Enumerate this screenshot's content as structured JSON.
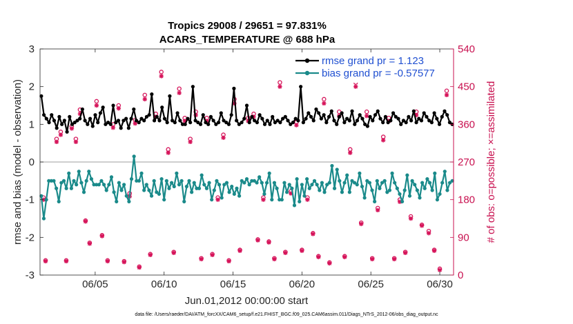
{
  "chart_data": {
    "type": "line",
    "title": "Tropics 29008 / 29651 = 97.831%",
    "subtitle": "ACARS_TEMPERATURE @ 688 hPa",
    "xlabel": "Jun.01,2012 00:00:00 start",
    "ylabel": "rmse and bias (model - observation)",
    "ylabel_right": "# of obs: o=possible; ×=assimilated",
    "footer": "data file: /Users/raeder/DAI/ATM_forcXX/CAM6_setup/f.e21.FHIST_BGC.f09_025.CAM6assim.011/Diags_NTrS_2012-06/obs_diag_output.nc",
    "xlim": [
      1,
      31
    ],
    "ylim": [
      -3,
      3
    ],
    "ylim_right": [
      0,
      540
    ],
    "x_ticks": [
      "06/05",
      "06/10",
      "06/15",
      "06/20",
      "06/25",
      "06/30"
    ],
    "x_tick_values": [
      5,
      10,
      15,
      20,
      25,
      30
    ],
    "y_ticks": [
      "3",
      "2",
      "1",
      "0",
      "-1",
      "-2",
      "-3"
    ],
    "y_tick_values": [
      3,
      2,
      1,
      0,
      -1,
      -2,
      -3
    ],
    "y_ticks_right": [
      "540",
      "450",
      "360",
      "270",
      "180",
      "90",
      "0"
    ],
    "y_tick_values_right": [
      540,
      450,
      360,
      270,
      180,
      90,
      0
    ],
    "series": [
      {
        "name": "rmse grand pr = 1.123",
        "color": "#000000",
        "values": [
          1.75,
          1.25,
          1.15,
          1.05,
          1.25,
          1.1,
          0.9,
          1.2,
          1.0,
          1.1,
          0.8,
          1.2,
          1.0,
          1.05,
          1.1,
          1.15,
          1.4,
          1.1,
          1.0,
          1.15,
          0.95,
          1.25,
          1.05,
          1.3,
          1.45,
          1.0,
          1.05,
          1.0,
          1.5,
          1.05,
          1.1,
          0.9,
          1.1,
          1.15,
          0.9,
          1.15,
          1.4,
          1.1,
          1.05,
          1.15,
          1.1,
          1.2,
          1.25,
          1.8,
          1.1,
          1.2,
          1.1,
          1.45,
          1.15,
          1.05,
          1.75,
          1.1,
          1.05,
          1.3,
          1.1,
          1.0,
          1.0,
          1.15,
          1.05,
          2.0,
          1.1,
          1.05,
          1.0,
          1.25,
          1.05,
          1.0,
          1.2,
          1.1,
          1.0,
          1.05,
          1.3,
          1.1,
          1.05,
          1.0,
          1.25,
          1.95,
          1.1,
          1.0,
          1.05,
          1.15,
          1.5,
          1.05,
          1.2,
          1.1,
          1.05,
          1.25,
          1.15,
          1.0,
          1.1,
          1.0,
          1.2,
          1.05,
          1.1,
          1.05,
          1.15,
          1.2,
          1.1,
          1.0,
          1.05,
          1.15,
          1.1,
          2.0,
          1.05,
          1.15,
          1.3,
          1.2,
          1.1,
          1.4,
          1.3,
          1.15,
          1.25,
          1.05,
          1.2,
          1.35,
          1.1,
          1.0,
          1.2,
          1.3,
          1.05,
          1.15,
          1.1,
          1.35,
          1.0,
          1.1,
          1.25,
          1.15,
          1.0,
          0.95,
          1.2,
          1.1,
          1.25,
          1.35,
          1.15,
          1.05,
          1.2,
          1.05,
          1.1,
          1.3,
          1.2,
          1.15,
          1.0,
          1.1,
          1.05,
          1.2,
          1.1,
          1.35,
          1.05,
          1.15,
          1.1,
          1.3,
          1.2,
          1.1,
          1.05,
          1.3,
          1.15,
          1.0,
          1.2,
          1.35,
          1.25,
          1.05,
          1.0
        ]
      },
      {
        "name": "bias grand pr = -0.57577",
        "color": "#1a8a8a",
        "values": [
          -0.9,
          -1.5,
          -1.0,
          -0.5,
          -0.5,
          -0.5,
          -0.7,
          -1.05,
          -0.55,
          -0.5,
          -0.7,
          -0.3,
          -0.7,
          -0.5,
          -0.6,
          -0.25,
          -0.55,
          -0.8,
          -0.5,
          -0.25,
          -0.45,
          -0.6,
          -0.6,
          -0.6,
          -0.5,
          -0.6,
          -0.75,
          -0.6,
          -0.4,
          -0.8,
          -1.05,
          -0.55,
          -0.75,
          -0.6,
          -0.9,
          -1.05,
          -0.45,
          0.15,
          -0.5,
          -0.5,
          -0.3,
          -0.75,
          -0.6,
          -0.75,
          -0.9,
          -0.5,
          -0.8,
          -0.85,
          -0.45,
          -1.0,
          -0.5,
          -0.7,
          -0.55,
          -0.65,
          -0.3,
          -0.6,
          -0.5,
          -1.05,
          -0.65,
          -0.5,
          -0.8,
          -0.55,
          -0.7,
          -0.7,
          -0.35,
          -0.6,
          -0.7,
          -0.55,
          -1.0,
          -0.75,
          -0.5,
          -0.6,
          -0.95,
          -0.6,
          -0.55,
          -0.8,
          -0.65,
          -0.85,
          -0.7,
          -0.9,
          -0.5,
          -0.55,
          -0.45,
          -0.6,
          -0.5,
          -0.5,
          -0.55,
          -0.4,
          -0.55,
          -0.85,
          -0.55,
          -0.3,
          -1.0,
          -0.55,
          -0.7,
          -1.0,
          -1.0,
          -0.55,
          -0.8,
          -0.6,
          -0.7,
          -1.15,
          -0.45,
          -1.05,
          -0.6,
          -0.9,
          -0.45,
          -0.7,
          -0.6,
          -0.5,
          -0.6,
          -0.75,
          -0.55,
          -0.8,
          -0.6,
          -0.55,
          -0.1,
          -0.7,
          -0.2,
          -0.5,
          -0.8,
          -0.55,
          -0.35,
          -0.8,
          -0.5,
          -0.55,
          -0.6,
          -0.3,
          -0.65,
          -0.95,
          -0.5,
          -0.55,
          -0.75,
          -1.05,
          -0.5,
          -0.7,
          -0.55,
          -0.5,
          -0.8,
          -0.75,
          -0.3,
          -0.55,
          -0.7,
          -0.85,
          -1.05,
          -0.75,
          -0.35,
          -0.9,
          -0.5,
          -0.6,
          -0.75,
          -0.95,
          -0.55,
          -0.7,
          -0.45,
          -0.55,
          -0.75,
          -0.3,
          -1.0,
          -0.85,
          -0.55,
          -0.25,
          -0.75,
          -0.55,
          -0.5
        ]
      }
    ],
    "obs_possible": [
      [
        1.25,
        185
      ],
      [
        1.4,
        35
      ],
      [
        2.2,
        325
      ],
      [
        2.5,
        342
      ],
      [
        2.9,
        35
      ],
      [
        3.3,
        355
      ],
      [
        3.6,
        325
      ],
      [
        3.9,
        395
      ],
      [
        4.3,
        130
      ],
      [
        4.6,
        77
      ],
      [
        5.1,
        415
      ],
      [
        5.5,
        95
      ],
      [
        5.9,
        35
      ],
      [
        6.3,
        360
      ],
      [
        6.7,
        405
      ],
      [
        7.1,
        33
      ],
      [
        7.5,
        195
      ],
      [
        7.9,
        370
      ],
      [
        8.2,
        20
      ],
      [
        8.6,
        430
      ],
      [
        9.0,
        50
      ],
      [
        9.4,
        385
      ],
      [
        9.8,
        485
      ],
      [
        10.3,
        300
      ],
      [
        10.7,
        55
      ],
      [
        11.1,
        445
      ],
      [
        11.5,
        375
      ],
      [
        11.9,
        325
      ],
      [
        12.3,
        390
      ],
      [
        12.7,
        40
      ],
      [
        13.1,
        375
      ],
      [
        13.5,
        50
      ],
      [
        13.9,
        185
      ],
      [
        14.3,
        335
      ],
      [
        14.7,
        35
      ],
      [
        15.1,
        420
      ],
      [
        15.5,
        60
      ],
      [
        16.1,
        375
      ],
      [
        16.5,
        385
      ],
      [
        16.8,
        85
      ],
      [
        17.2,
        185
      ],
      [
        17.6,
        80
      ],
      [
        18.0,
        40
      ],
      [
        18.4,
        460
      ],
      [
        18.8,
        55
      ],
      [
        19.2,
        200
      ],
      [
        19.6,
        365
      ],
      [
        20.0,
        60
      ],
      [
        20.4,
        185
      ],
      [
        20.8,
        100
      ],
      [
        21.2,
        45
      ],
      [
        21.6,
        420
      ],
      [
        22.0,
        30
      ],
      [
        22.7,
        390
      ],
      [
        23.1,
        45
      ],
      [
        23.5,
        300
      ],
      [
        23.9,
        460
      ],
      [
        24.3,
        125
      ],
      [
        24.7,
        390
      ],
      [
        25.1,
        40
      ],
      [
        25.5,
        160
      ],
      [
        25.9,
        330
      ],
      [
        26.3,
        375
      ],
      [
        26.7,
        40
      ],
      [
        27.1,
        180
      ],
      [
        27.5,
        55
      ],
      [
        27.9,
        140
      ],
      [
        28.3,
        390
      ],
      [
        28.7,
        120
      ],
      [
        29.2,
        105
      ],
      [
        29.6,
        60
      ],
      [
        30.0,
        15
      ],
      [
        30.5,
        440
      ]
    ],
    "obs_assimilated": [
      [
        1.25,
        180
      ],
      [
        1.4,
        33
      ],
      [
        2.2,
        318
      ],
      [
        2.5,
        335
      ],
      [
        2.9,
        33
      ],
      [
        3.3,
        350
      ],
      [
        3.6,
        318
      ],
      [
        3.9,
        385
      ],
      [
        4.3,
        128
      ],
      [
        4.6,
        75
      ],
      [
        5.1,
        405
      ],
      [
        5.5,
        93
      ],
      [
        5.9,
        33
      ],
      [
        6.3,
        352
      ],
      [
        6.7,
        398
      ],
      [
        7.1,
        31
      ],
      [
        7.5,
        188
      ],
      [
        7.9,
        362
      ],
      [
        8.2,
        18
      ],
      [
        8.6,
        420
      ],
      [
        9.0,
        48
      ],
      [
        9.4,
        378
      ],
      [
        9.8,
        475
      ],
      [
        10.3,
        292
      ],
      [
        10.7,
        53
      ],
      [
        11.1,
        435
      ],
      [
        11.5,
        368
      ],
      [
        11.9,
        318
      ],
      [
        12.3,
        382
      ],
      [
        12.7,
        38
      ],
      [
        13.1,
        368
      ],
      [
        13.5,
        48
      ],
      [
        13.9,
        180
      ],
      [
        14.3,
        328
      ],
      [
        14.7,
        33
      ],
      [
        15.1,
        410
      ],
      [
        15.5,
        58
      ],
      [
        16.1,
        368
      ],
      [
        16.5,
        378
      ],
      [
        16.8,
        83
      ],
      [
        17.2,
        180
      ],
      [
        17.6,
        78
      ],
      [
        18.0,
        38
      ],
      [
        18.4,
        450
      ],
      [
        18.8,
        53
      ],
      [
        19.2,
        195
      ],
      [
        19.6,
        358
      ],
      [
        20.0,
        58
      ],
      [
        20.4,
        180
      ],
      [
        20.8,
        98
      ],
      [
        21.2,
        43
      ],
      [
        21.6,
        410
      ],
      [
        22.0,
        28
      ],
      [
        22.7,
        380
      ],
      [
        23.1,
        43
      ],
      [
        23.5,
        292
      ],
      [
        23.9,
        450
      ],
      [
        24.3,
        122
      ],
      [
        24.7,
        380
      ],
      [
        25.1,
        38
      ],
      [
        25.5,
        155
      ],
      [
        25.9,
        322
      ],
      [
        26.3,
        368
      ],
      [
        26.7,
        38
      ],
      [
        27.1,
        175
      ],
      [
        27.5,
        53
      ],
      [
        27.9,
        135
      ],
      [
        28.3,
        382
      ],
      [
        28.7,
        118
      ],
      [
        29.2,
        100
      ],
      [
        29.6,
        58
      ],
      [
        30.0,
        12
      ],
      [
        30.5,
        430
      ]
    ]
  }
}
